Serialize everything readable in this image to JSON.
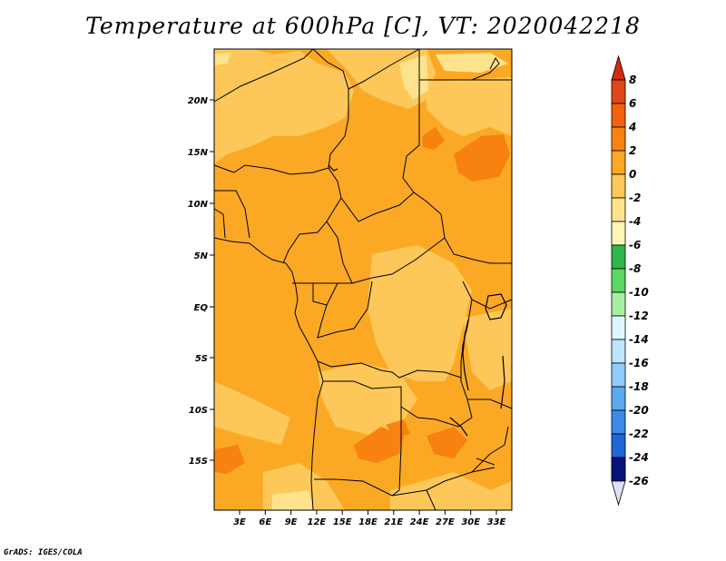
{
  "title": "Temperature at 600hPa [C], VT: 2020042218",
  "credit": "GrADS: IGES/COLA",
  "map": {
    "lat_labels": [
      "20N",
      "15N",
      "10N",
      "5N",
      "EQ",
      "5S",
      "10S",
      "15S"
    ],
    "lon_labels": [
      "3E",
      "6E",
      "9E",
      "12E",
      "15E",
      "18E",
      "21E",
      "24E",
      "27E",
      "30E",
      "33E"
    ],
    "colors": {
      "c_minus2_0": "#fee38d",
      "c_0_2": "#fdc859",
      "c_2_4": "#fba925",
      "c_4_6": "#f78210",
      "border": "#000000"
    }
  },
  "colorbar": {
    "labels": [
      "8",
      "6",
      "4",
      "2",
      "0",
      "-2",
      "-4",
      "-6",
      "-8",
      "-10",
      "-12",
      "-14",
      "-16",
      "-18",
      "-20",
      "-22",
      "-24",
      "-26"
    ],
    "colors": [
      "#e2451a",
      "#f2620c",
      "#f78210",
      "#fba925",
      "#fdc859",
      "#fee38d",
      "#fff6b8",
      "#2fb54a",
      "#5cd665",
      "#a6efa3",
      "#dff5ff",
      "#bfe4ff",
      "#8fcdfb",
      "#5ca8f3",
      "#3a8aeb",
      "#1f67d8",
      "#0d42b5",
      "#06137a"
    ],
    "top_color": "#d42a12",
    "bottom_color": "#e0e0f7"
  }
}
